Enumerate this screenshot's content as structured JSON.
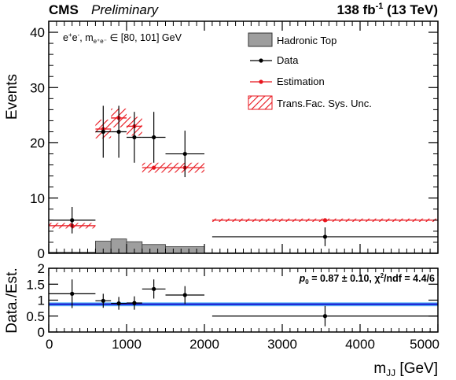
{
  "header": {
    "experiment": "CMS",
    "status": "Preliminary",
    "lumi_value": "138 fb",
    "lumi_exp": "-1",
    "energy": "(13 TeV)"
  },
  "chart_data": [
    {
      "type": "bar",
      "panel": "main",
      "ylabel": "Events",
      "ylim": [
        0,
        42
      ],
      "yticks": [
        "0",
        "10",
        "20",
        "30",
        "40"
      ],
      "xlim": [
        0,
        5000
      ],
      "selection_label": "e⁺e⁻, m_{e⁺e⁻} ∈ [80, 101] GeV",
      "selection": {
        "prefix": "e",
        "sup1": "+",
        "mid": "e",
        "sup2": "-",
        "m": ", m",
        "sub": "e⁺e⁻",
        "range": "∈ [80, 101] GeV"
      },
      "legend": {
        "placement": "top-right",
        "entries": [
          "Hadronic Top",
          "Data",
          "Estimation",
          "Trans.Fac. Sys. Unc."
        ]
      },
      "bin_edges": [
        0,
        600,
        800,
        1000,
        1200,
        1500,
        2000,
        5000
      ],
      "series": [
        {
          "name": "Hadronic Top",
          "kind": "filled-histogram",
          "color": "#9e9e9e",
          "values": [
            0.2,
            2.2,
            2.6,
            2.1,
            1.6,
            1.2,
            0.1
          ]
        },
        {
          "name": "Data",
          "kind": "points",
          "color": "#000000",
          "x": [
            300,
            700,
            900,
            1100,
            1350,
            1750,
            3550
          ],
          "xerr": [
            300,
            100,
            100,
            100,
            150,
            250,
            1450
          ],
          "y": [
            6,
            22,
            22,
            21,
            21,
            18,
            3
          ],
          "yerr": [
            2.4,
            4.7,
            4.7,
            4.6,
            4.6,
            4.2,
            1.7
          ]
        },
        {
          "name": "Estimation",
          "kind": "points",
          "color": "#e8141c",
          "x": [
            300,
            700,
            900,
            1100,
            1350,
            1750,
            3550
          ],
          "xerr": [
            300,
            100,
            100,
            100,
            150,
            250,
            1450
          ],
          "y": [
            5,
            22.5,
            24.5,
            23,
            15.5,
            15.5,
            6
          ],
          "yerr": [
            0.5,
            1.7,
            1.7,
            1.7,
            0.9,
            0.9,
            0.3
          ]
        }
      ]
    },
    {
      "type": "scatter",
      "panel": "ratio",
      "ylabel": "Data./Est.",
      "xlabel": "m_{JJ} [GeV]",
      "xlabel_main": "m",
      "xlabel_sub": "JJ",
      "xlabel_unit": "[GeV]",
      "ylim": [
        0,
        2
      ],
      "yticks": [
        "0",
        "0.5",
        "1",
        "1.5",
        "2"
      ],
      "xlim": [
        0,
        5000
      ],
      "xticks": [
        "0",
        "1000",
        "2000",
        "3000",
        "4000",
        "5000"
      ],
      "fit_text": "p₀ = 0.87 ± 0.10, χ²/ndf = 4.4/6",
      "fit": {
        "p": "p",
        "p_sub": "0",
        "mid": " = 0.87 ± 0.10, χ",
        "chi_sup": "2",
        "tail": "/ndf = 4.4/6",
        "value": 0.87,
        "uncertainty": 0.1,
        "line_color": "#1f2bd8",
        "band_color": "#3fa9f5"
      },
      "series": [
        {
          "name": "Data",
          "x": [
            300,
            700,
            900,
            1100,
            1350,
            1750,
            3550
          ],
          "xerr": [
            300,
            100,
            100,
            100,
            150,
            250,
            1450
          ],
          "y": [
            1.2,
            0.98,
            0.9,
            0.91,
            1.35,
            1.16,
            0.5
          ],
          "yerr": [
            0.45,
            0.22,
            0.2,
            0.21,
            0.3,
            0.28,
            0.32
          ]
        }
      ]
    }
  ]
}
